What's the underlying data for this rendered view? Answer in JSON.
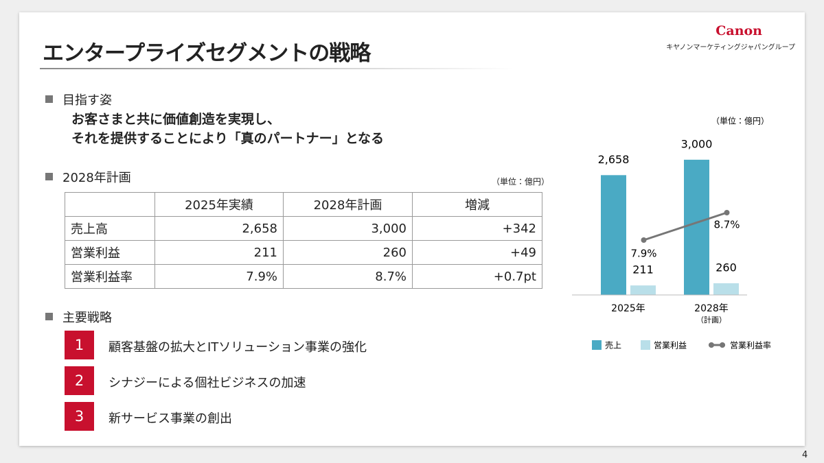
{
  "header": {
    "title": "エンタープライズセグメントの戦略",
    "logo": "Canon",
    "company": "キヤノンマーケティングジャパングループ"
  },
  "vision": {
    "heading": "目指す姿",
    "lines": [
      "お客さまと共に価値創造を実現し、",
      "それを提供することにより「真のパートナー」となる"
    ]
  },
  "plan": {
    "heading": "2028年計画",
    "unit": "（単位：億円）",
    "table": {
      "columns": [
        "2025年実績",
        "2028年計画",
        "増減"
      ],
      "rows": [
        [
          "売上高",
          "2,658",
          "3,000",
          "+342"
        ],
        [
          "営業利益",
          "211",
          "260",
          "+49"
        ],
        [
          "営業利益率",
          "7.9%",
          "8.7%",
          "+0.7pt"
        ]
      ]
    }
  },
  "strategy": {
    "heading": "主要戦略",
    "items": [
      {
        "number": "1",
        "text": "顧客基盤の拡大とITソリューション事業の強化"
      },
      {
        "number": "2",
        "text": "シナジーによる個社ビジネスの加速"
      },
      {
        "number": "3",
        "text": "新サービス事業の創出"
      }
    ]
  },
  "page_number": "4",
  "chart_data": {
    "type": "bar",
    "unit": "（単位：億円）",
    "categories": [
      "2025年",
      "2028年"
    ],
    "category_note": "（計画）",
    "series": [
      {
        "name": "売上",
        "color": "#4aaac4",
        "values": [
          2658,
          3000
        ],
        "value_labels": [
          "2,658",
          "3,000"
        ]
      },
      {
        "name": "営業利益",
        "color": "#b9dfe9",
        "values": [
          211,
          260
        ],
        "value_labels": [
          "211",
          "260"
        ]
      },
      {
        "name": "営業利益率",
        "type": "line",
        "axis": "y2",
        "color": "#767676",
        "values": [
          7.9,
          8.7
        ],
        "value_labels": [
          "7.9%",
          "8.7%"
        ]
      }
    ],
    "ylim": [
      0,
      3500
    ],
    "y2lim": [
      6.3,
      10.9
    ],
    "legend": "bottom"
  }
}
